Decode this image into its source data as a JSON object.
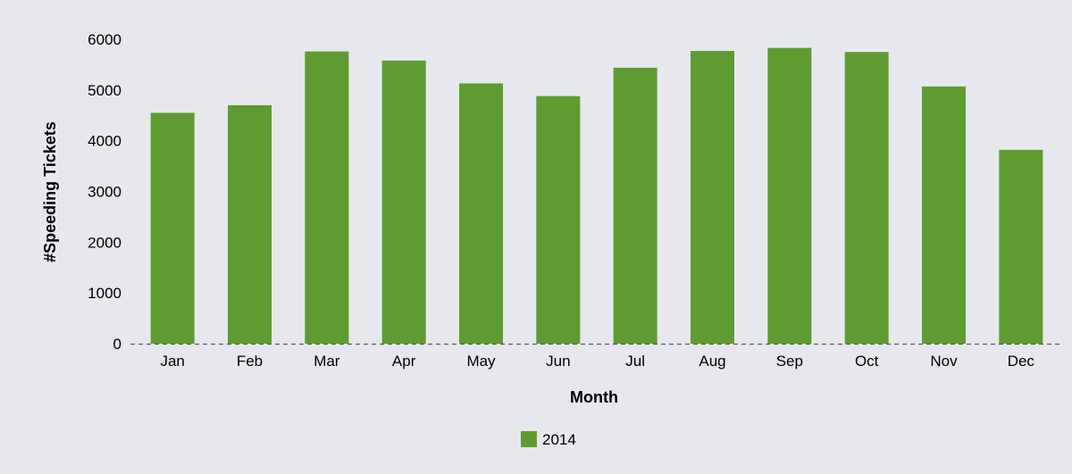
{
  "chart_data": {
    "type": "bar",
    "title": "",
    "xlabel": "Month",
    "ylabel": "#Speeding Tickets",
    "categories": [
      "Jan",
      "Feb",
      "Mar",
      "Apr",
      "May",
      "Jun",
      "Jul",
      "Aug",
      "Sep",
      "Oct",
      "Nov",
      "Dec"
    ],
    "series": [
      {
        "name": "2014",
        "color": "#5e9c32",
        "values": [
          4550,
          4700,
          5760,
          5580,
          5130,
          4880,
          5440,
          5770,
          5830,
          5750,
          5070,
          3820
        ]
      }
    ],
    "ylim": [
      0,
      6000
    ],
    "yticks": [
      "0",
      "1000",
      "2000",
      "3000",
      "4000",
      "5000",
      "6000"
    ],
    "grid": false,
    "baseline_style": "dashed",
    "legend_position": "bottom-center"
  }
}
